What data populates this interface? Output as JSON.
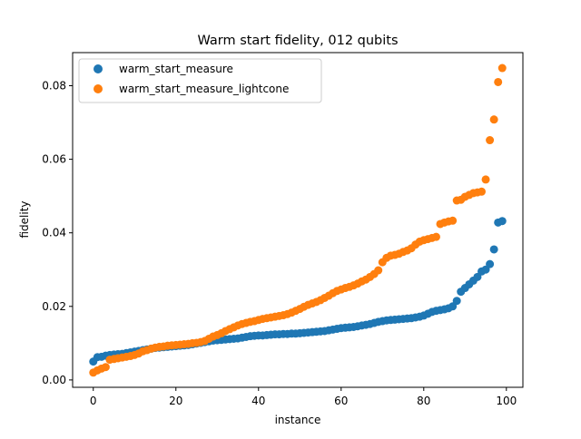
{
  "chart_data": {
    "type": "scatter",
    "title": "Warm start fidelity, 012 qubits",
    "xlabel": "instance",
    "ylabel": "fidelity",
    "xlim": [
      -5,
      104
    ],
    "ylim": [
      -0.002,
      0.089
    ],
    "xticks": [
      0,
      20,
      40,
      60,
      80,
      100
    ],
    "xtick_labels": [
      "0",
      "20",
      "40",
      "60",
      "80",
      "100"
    ],
    "yticks": [
      0.0,
      0.02,
      0.04,
      0.06,
      0.08
    ],
    "ytick_labels": [
      "0.00",
      "0.02",
      "0.04",
      "0.06",
      "0.08"
    ],
    "grid": false,
    "legend_position": "top-left",
    "x": [
      0,
      1,
      2,
      3,
      4,
      5,
      6,
      7,
      8,
      9,
      10,
      11,
      12,
      13,
      14,
      15,
      16,
      17,
      18,
      19,
      20,
      21,
      22,
      23,
      24,
      25,
      26,
      27,
      28,
      29,
      30,
      31,
      32,
      33,
      34,
      35,
      36,
      37,
      38,
      39,
      40,
      41,
      42,
      43,
      44,
      45,
      46,
      47,
      48,
      49,
      50,
      51,
      52,
      53,
      54,
      55,
      56,
      57,
      58,
      59,
      60,
      61,
      62,
      63,
      64,
      65,
      66,
      67,
      68,
      69,
      70,
      71,
      72,
      73,
      74,
      75,
      76,
      77,
      78,
      79,
      80,
      81,
      82,
      83,
      84,
      85,
      86,
      87,
      88,
      89,
      90,
      91,
      92,
      93,
      94,
      95,
      96,
      97,
      98,
      99
    ],
    "series": [
      {
        "name": "warm_start_measure",
        "color": "#1f77b4",
        "values": [
          0.005,
          0.0062,
          0.0063,
          0.0066,
          0.0068,
          0.0069,
          0.007,
          0.0071,
          0.0073,
          0.0075,
          0.0077,
          0.0079,
          0.0081,
          0.0083,
          0.0085,
          0.0087,
          0.0088,
          0.0089,
          0.009,
          0.0091,
          0.0092,
          0.0093,
          0.0094,
          0.0095,
          0.0097,
          0.0099,
          0.0101,
          0.0103,
          0.0105,
          0.0107,
          0.0108,
          0.0109,
          0.011,
          0.0111,
          0.0112,
          0.0113,
          0.0115,
          0.0117,
          0.0119,
          0.012,
          0.0121,
          0.0121,
          0.0122,
          0.0123,
          0.0124,
          0.0124,
          0.0125,
          0.0125,
          0.0126,
          0.0126,
          0.0127,
          0.0128,
          0.0129,
          0.013,
          0.0131,
          0.0132,
          0.0133,
          0.0135,
          0.0137,
          0.0139,
          0.0141,
          0.0142,
          0.0143,
          0.0144,
          0.0146,
          0.0148,
          0.015,
          0.0152,
          0.0155,
          0.0158,
          0.016,
          0.0162,
          0.0163,
          0.0164,
          0.0165,
          0.0166,
          0.0167,
          0.0168,
          0.017,
          0.0172,
          0.0175,
          0.018,
          0.0185,
          0.0188,
          0.019,
          0.0192,
          0.0195,
          0.02,
          0.0215,
          0.024,
          0.025,
          0.026,
          0.027,
          0.028,
          0.0295,
          0.03,
          0.0315,
          0.0355,
          0.0428,
          0.0432
        ]
      },
      {
        "name": "warm_start_measure_lightcone",
        "color": "#ff7f0e",
        "values": [
          0.002,
          0.0026,
          0.0031,
          0.0035,
          0.0055,
          0.0057,
          0.0059,
          0.0061,
          0.0063,
          0.0065,
          0.0068,
          0.0072,
          0.0078,
          0.0081,
          0.0085,
          0.0088,
          0.009,
          0.0091,
          0.0093,
          0.0094,
          0.0095,
          0.0096,
          0.0097,
          0.0098,
          0.01,
          0.0101,
          0.0103,
          0.0106,
          0.0112,
          0.0118,
          0.0122,
          0.0127,
          0.0133,
          0.0138,
          0.0143,
          0.0148,
          0.0152,
          0.0155,
          0.0158,
          0.016,
          0.0163,
          0.0166,
          0.0168,
          0.017,
          0.0172,
          0.0174,
          0.0176,
          0.0179,
          0.0183,
          0.0188,
          0.0193,
          0.0199,
          0.0204,
          0.0208,
          0.0212,
          0.0217,
          0.0223,
          0.0229,
          0.0236,
          0.0242,
          0.0246,
          0.025,
          0.0253,
          0.0257,
          0.0262,
          0.0268,
          0.0273,
          0.028,
          0.0288,
          0.0298,
          0.032,
          0.0332,
          0.0338,
          0.034,
          0.0343,
          0.0348,
          0.0352,
          0.0358,
          0.0368,
          0.0376,
          0.038,
          0.0383,
          0.0386,
          0.0389,
          0.0424,
          0.0428,
          0.0431,
          0.0433,
          0.0488,
          0.049,
          0.0498,
          0.0503,
          0.0508,
          0.051,
          0.0512,
          0.0545,
          0.0652,
          0.0708,
          0.081,
          0.0848
        ]
      }
    ]
  }
}
